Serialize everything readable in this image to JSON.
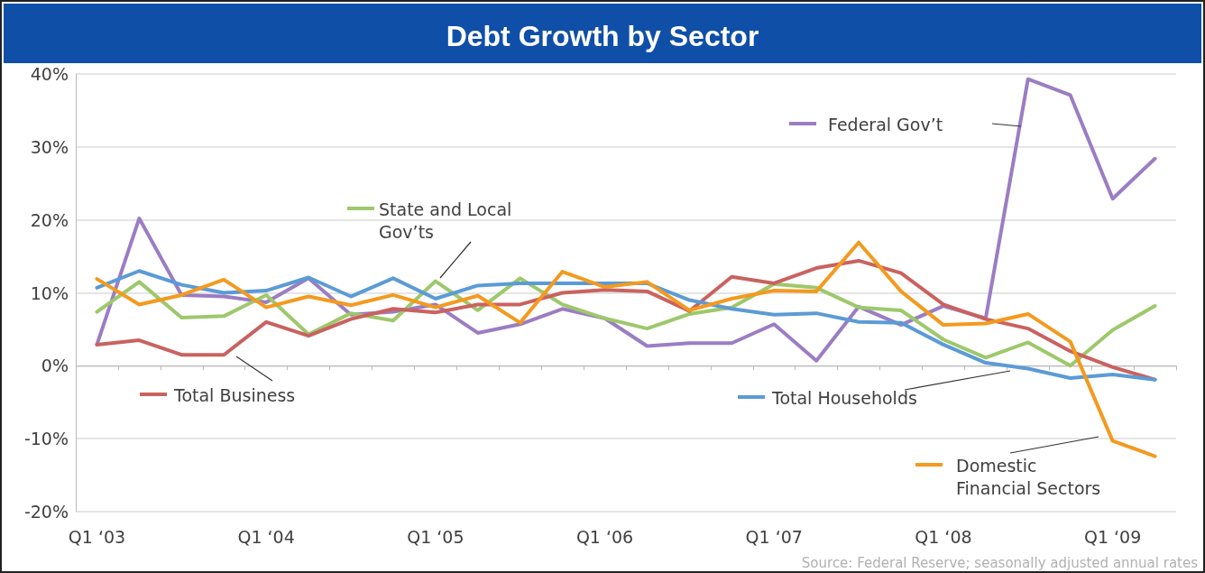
{
  "chart_data": {
    "type": "line",
    "title": "Debt Growth by Sector",
    "categories": [
      "Q1 ‘03",
      null,
      null,
      null,
      "Q1 ‘04",
      null,
      null,
      null,
      "Q1 ‘05",
      null,
      null,
      null,
      "Q1 ‘06",
      null,
      null,
      null,
      "Q1 ‘07",
      null,
      null,
      null,
      "Q1 ‘08",
      null,
      null,
      null,
      "Q1 ‘09",
      null
    ],
    "series": [
      {
        "name": "Federal Gov’t",
        "color": "#9b7dc3",
        "values": [
          2.9,
          20.2,
          9.7,
          9.5,
          8.7,
          12.0,
          7.0,
          7.4,
          8.4,
          4.5,
          5.7,
          7.8,
          6.5,
          2.7,
          3.1,
          3.1,
          5.7,
          0.7,
          8.1,
          5.6,
          8.2,
          6.5,
          39.3,
          37.1,
          22.9,
          28.4
        ]
      },
      {
        "name": "State and Local Gov’ts",
        "color": "#9dc86b",
        "values": [
          7.4,
          11.5,
          6.6,
          6.8,
          9.7,
          4.3,
          7.2,
          6.2,
          11.6,
          7.6,
          12.0,
          8.4,
          6.5,
          5.1,
          7.1,
          8.0,
          11.2,
          10.7,
          8.0,
          7.6,
          3.6,
          1.1,
          3.2,
          0.0,
          4.9,
          8.2
        ]
      },
      {
        "name": "Total Business",
        "color": "#c9625f",
        "values": [
          2.9,
          3.5,
          1.5,
          1.5,
          6.0,
          4.1,
          6.4,
          7.8,
          7.3,
          8.4,
          8.4,
          10.0,
          10.4,
          10.2,
          7.5,
          12.2,
          11.3,
          13.4,
          14.4,
          12.7,
          8.4,
          6.4,
          5.1,
          2.0,
          -0.2,
          -1.9
        ]
      },
      {
        "name": "Total Households",
        "color": "#5b9bd5",
        "values": [
          10.7,
          13.0,
          11.1,
          10.0,
          10.3,
          12.1,
          9.5,
          12.0,
          9.2,
          11.0,
          11.3,
          11.3,
          11.3,
          11.3,
          9.0,
          7.8,
          7.0,
          7.2,
          6.0,
          5.9,
          2.9,
          0.4,
          -0.4,
          -1.7,
          -1.2,
          -1.9
        ]
      },
      {
        "name": "Domestic Financial Sectors",
        "color": "#f39a1f",
        "values": [
          11.9,
          8.4,
          9.7,
          11.8,
          8.0,
          9.5,
          8.3,
          9.7,
          8.0,
          9.6,
          5.9,
          12.9,
          10.8,
          11.5,
          7.6,
          9.2,
          10.3,
          10.2,
          16.9,
          10.2,
          5.6,
          5.8,
          7.1,
          3.3,
          -10.3,
          -12.4
        ]
      }
    ],
    "ylim": [
      -20,
      40
    ],
    "yticks": [
      {
        "value": -20,
        "label": "-20%"
      },
      {
        "value": -10,
        "label": "-10%"
      },
      {
        "value": 0,
        "label": "0%"
      },
      {
        "value": 10,
        "label": "10%"
      },
      {
        "value": 20,
        "label": "20%"
      },
      {
        "value": 30,
        "label": "30%"
      },
      {
        "value": 40,
        "label": "40%"
      }
    ],
    "grid": "y",
    "legend": "bottom left",
    "annotations": [
      "Source: Federal Reserve; seasonally adjusted annual rates"
    ]
  }
}
